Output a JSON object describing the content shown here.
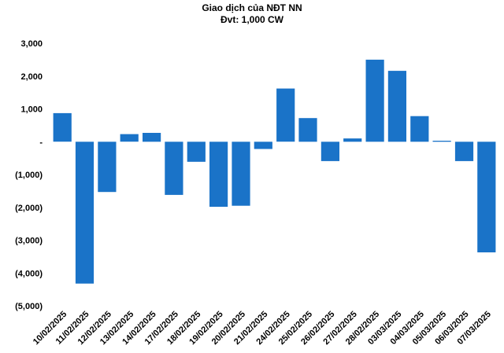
{
  "chart_data": {
    "type": "bar",
    "title": "Giao dịch của NĐT NN",
    "subtitle": "Đvt: 1,000 CW",
    "xlabel": "",
    "ylabel": "",
    "ylim": [
      -5000,
      3000
    ],
    "yticks": [
      3000,
      2000,
      1000,
      0,
      -1000,
      -2000,
      -3000,
      -4000,
      -5000
    ],
    "ytick_labels": [
      "3,000",
      "2,000",
      "1,000",
      "-",
      "(1,000)",
      "(2,000)",
      "(3,000)",
      "(4,000)",
      "(5,000)"
    ],
    "grid": false,
    "legend": "none",
    "bar_color": "#1a73c8",
    "categories": [
      "10/02/2025",
      "11/02/2025",
      "12/02/2025",
      "13/02/2025",
      "14/02/2025",
      "17/02/2025",
      "18/02/2025",
      "19/02/2025",
      "20/02/2025",
      "21/02/2025",
      "24/02/2025",
      "25/02/2025",
      "26/02/2025",
      "27/02/2025",
      "28/02/2025",
      "03/03/2025",
      "04/03/2025",
      "05/03/2025",
      "06/03/2025",
      "07/03/2025"
    ],
    "values": [
      870,
      -4320,
      -1530,
      230,
      270,
      -1620,
      -610,
      -1980,
      -1950,
      -220,
      1620,
      720,
      -590,
      100,
      2500,
      2160,
      780,
      30,
      -590,
      -3370
    ]
  }
}
